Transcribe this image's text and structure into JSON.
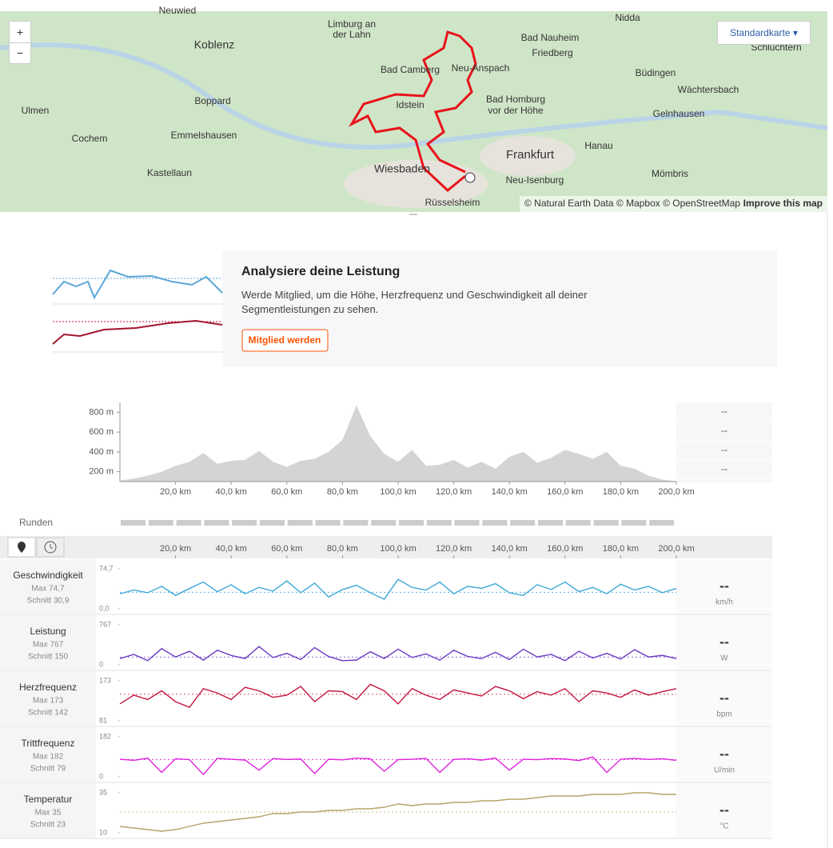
{
  "map": {
    "zoom_in": "+",
    "zoom_out": "−",
    "style_button": "Standardkarte",
    "places": [
      "Neuwied",
      "Limburg an",
      "der Lahn",
      "Nidda",
      "Bad Nauheim",
      "Friedberg",
      "Schlüchtern",
      "Koblenz",
      "Bad Camberg",
      "Neu-Anspach",
      "Büdingen",
      "Boppard",
      "Idstein",
      "Bad Homburg",
      "vor der Höhe",
      "Wächtersbach",
      "Ulmen",
      "Emmelshausen",
      "Gelnhausen",
      "Cochem",
      "Frankfurt",
      "Hanau",
      "Kastellaun",
      "Wiesbaden",
      "Mömbris",
      "Neu-Isenburg",
      "Rüsselsheim"
    ],
    "attribution": "© Natural Earth Data © Mapbox © OpenStreetMap",
    "improve": "Improve this map"
  },
  "promo": {
    "title": "Analysiere deine Leistung",
    "text": "Werde Mitglied, um die Höhe, Herzfrequenz und Geschwindigkeit all deiner Segmentleistungen zu sehen.",
    "button": "Mitglied werden"
  },
  "elevation": {
    "type": "area",
    "color": "#d4d4d4",
    "x": [
      0,
      5,
      10,
      15,
      20,
      25,
      30,
      35,
      40,
      45,
      50,
      55,
      60,
      65,
      70,
      75,
      80,
      85,
      90,
      95,
      100,
      105,
      110,
      115,
      120,
      125,
      130,
      135,
      140,
      145,
      150,
      155,
      160,
      165,
      170,
      175,
      180,
      185,
      190,
      195,
      200
    ],
    "values": [
      110,
      130,
      160,
      200,
      260,
      300,
      390,
      280,
      310,
      320,
      410,
      300,
      250,
      310,
      330,
      400,
      520,
      870,
      560,
      380,
      300,
      420,
      260,
      270,
      320,
      240,
      300,
      230,
      350,
      400,
      290,
      340,
      420,
      380,
      330,
      400,
      260,
      230,
      160,
      120,
      105
    ],
    "xlim": [
      0,
      200
    ],
    "ylim": [
      100,
      900
    ],
    "yticks": [
      {
        "value": 200,
        "label": "200 m"
      },
      {
        "value": 400,
        "label": "400 m"
      },
      {
        "value": 600,
        "label": "600 m"
      },
      {
        "value": 800,
        "label": "800 m"
      }
    ],
    "xticks": [
      {
        "value": 20,
        "label": "20,0 km"
      },
      {
        "value": 40,
        "label": "40,0 km"
      },
      {
        "value": 60,
        "label": "60,0 km"
      },
      {
        "value": 80,
        "label": "80,0 km"
      },
      {
        "value": 100,
        "label": "100,0 km"
      },
      {
        "value": 120,
        "label": "120,0 km"
      },
      {
        "value": 140,
        "label": "140,0 km"
      },
      {
        "value": 160,
        "label": "160,0 km"
      },
      {
        "value": 180,
        "label": "180,0 km"
      },
      {
        "value": 200,
        "label": "200,0 km"
      }
    ],
    "side_values": [
      "--",
      "--",
      "--",
      "--"
    ]
  },
  "laps_label": "Runden",
  "streams": {
    "type": "line",
    "xlim": [
      0,
      200
    ],
    "xticks": [
      {
        "value": 20,
        "label": "20,0 km"
      },
      {
        "value": 40,
        "label": "40,0 km"
      },
      {
        "value": 60,
        "label": "60,0 km"
      },
      {
        "value": 80,
        "label": "80,0 km"
      },
      {
        "value": 100,
        "label": "100,0 km"
      },
      {
        "value": 120,
        "label": "120,0 km"
      },
      {
        "value": 140,
        "label": "140,0 km"
      },
      {
        "value": 160,
        "label": "160,0 km"
      },
      {
        "value": 180,
        "label": "180,0 km"
      },
      {
        "value": 200,
        "label": "200,0 km"
      }
    ],
    "x": [
      0,
      5,
      10,
      15,
      20,
      25,
      30,
      35,
      40,
      45,
      50,
      55,
      60,
      65,
      70,
      75,
      80,
      85,
      90,
      95,
      100,
      105,
      110,
      115,
      120,
      125,
      130,
      135,
      140,
      145,
      150,
      155,
      160,
      165,
      170,
      175,
      180,
      185,
      190,
      195,
      200
    ],
    "series": [
      {
        "name": "Geschwindigkeit",
        "max_label": "Max 74,7",
        "avg": {
          "value": 30.9,
          "label": "Schnitt 30,9"
        },
        "color": "#3ea8d8",
        "unit": "km/h",
        "current": "--",
        "ylim": [
          0,
          74.7
        ],
        "yticks": [
          {
            "value": 74.7,
            "label": "74,7"
          },
          {
            "value": 0,
            "label": "0,0"
          }
        ],
        "values": [
          28,
          35,
          30,
          42,
          25,
          38,
          50,
          32,
          45,
          28,
          40,
          33,
          52,
          30,
          48,
          22,
          36,
          44,
          30,
          18,
          55,
          40,
          35,
          50,
          28,
          42,
          38,
          47,
          30,
          25,
          45,
          36,
          50,
          32,
          40,
          28,
          46,
          35,
          42,
          30,
          38
        ]
      },
      {
        "name": "Leistung",
        "max_label": "Max 767",
        "avg": {
          "value": 150,
          "label": "Schnitt 150"
        },
        "color": "#6a3bc4",
        "unit": "W",
        "current": "--",
        "ylim": [
          0,
          767
        ],
        "yticks": [
          767,
          0
        ],
        "values": [
          120,
          200,
          80,
          310,
          150,
          260,
          90,
          280,
          180,
          120,
          350,
          140,
          220,
          100,
          330,
          160,
          80,
          90,
          250,
          120,
          300,
          140,
          210,
          90,
          280,
          160,
          120,
          240,
          100,
          300,
          150,
          200,
          80,
          260,
          130,
          220,
          110,
          290,
          150,
          180,
          120
        ]
      },
      {
        "name": "Herzfrequenz",
        "max_label": "Max 173",
        "avg": {
          "value": 142,
          "label": "Schnitt 142"
        },
        "color": "#c4163f",
        "unit": "bpm",
        "current": "--",
        "ylim": [
          81,
          173
        ],
        "yticks": [
          173,
          81
        ],
        "values": [
          120,
          140,
          130,
          150,
          125,
          112,
          155,
          145,
          130,
          158,
          150,
          135,
          140,
          160,
          125,
          150,
          148,
          130,
          165,
          150,
          120,
          155,
          140,
          130,
          152,
          145,
          138,
          160,
          150,
          132,
          148,
          140,
          155,
          125,
          150,
          145,
          135,
          152,
          140,
          148,
          155
        ]
      },
      {
        "name": "Trittfrequenz",
        "max_label": "Max 182",
        "avg": {
          "value": 79,
          "label": "Schnitt 79"
        },
        "color": "#e020e0",
        "unit": "U/min",
        "current": "--",
        "ylim": [
          0,
          182
        ],
        "yticks": [
          182,
          0
        ],
        "values": [
          80,
          75,
          85,
          20,
          82,
          78,
          10,
          84,
          80,
          76,
          30,
          83,
          79,
          81,
          15,
          80,
          77,
          85,
          82,
          25,
          78,
          80,
          84,
          20,
          79,
          82,
          76,
          85,
          30,
          80,
          78,
          83,
          81,
          74,
          90,
          20,
          80,
          84,
          79,
          82,
          75
        ]
      },
      {
        "name": "Temperatur",
        "max_label": "Max 35",
        "avg": {
          "value": 23,
          "label": "Schnitt 23"
        },
        "color": "#b8a46a",
        "unit": "°C",
        "current": "--",
        "ylim": [
          10,
          35
        ],
        "yticks": [
          35,
          10
        ],
        "values": [
          14,
          13,
          12,
          11,
          12,
          14,
          16,
          17,
          18,
          19,
          20,
          22,
          22,
          23,
          23,
          24,
          24,
          25,
          25,
          26,
          28,
          27,
          28,
          28,
          29,
          29,
          30,
          30,
          31,
          31,
          32,
          33,
          33,
          33,
          34,
          34,
          34,
          35,
          35,
          34,
          34
        ]
      }
    ]
  }
}
